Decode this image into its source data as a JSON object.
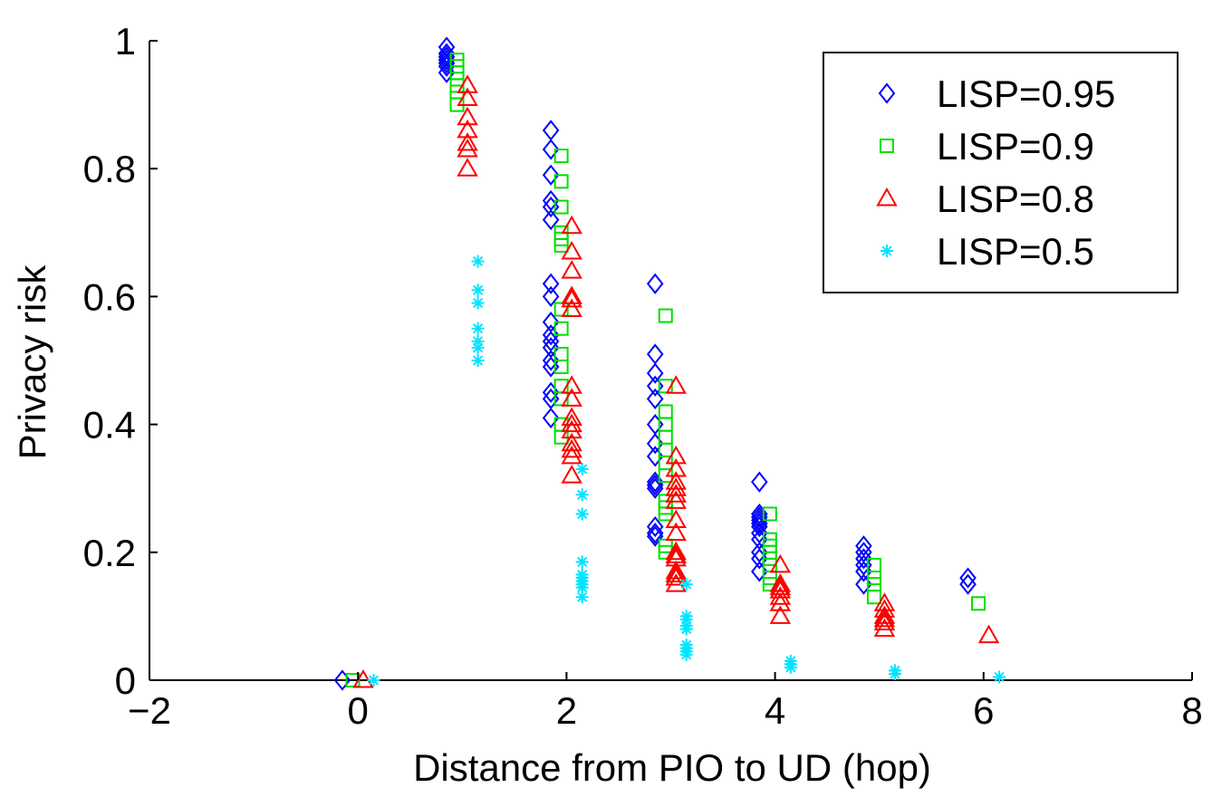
{
  "chart_data": {
    "type": "scatter",
    "title": "",
    "xlabel": "Distance from PIO to UD (hop)",
    "ylabel": "Privacy risk",
    "xlim": [
      -2,
      8
    ],
    "ylim": [
      0,
      1
    ],
    "xticks": [
      -2,
      0,
      2,
      4,
      6,
      8
    ],
    "yticks": [
      0,
      0.2,
      0.4,
      0.6,
      0.8,
      1
    ],
    "xtick_labels": [
      "−2",
      "0",
      "2",
      "4",
      "6",
      "8"
    ],
    "ytick_labels": [
      "0",
      "0.2",
      "0.4",
      "0.6",
      "0.8",
      "1"
    ],
    "grid": false,
    "legend_position": "top-right",
    "series": [
      {
        "name": "LISP=0.95",
        "marker": "diamond",
        "color": "#0000ff",
        "points": [
          [
            -0.15,
            0.0
          ],
          [
            0.85,
            0.99
          ],
          [
            0.85,
            0.98
          ],
          [
            0.85,
            0.975
          ],
          [
            0.85,
            0.97
          ],
          [
            0.85,
            0.965
          ],
          [
            0.85,
            0.96
          ],
          [
            0.85,
            0.95
          ],
          [
            1.85,
            0.86
          ],
          [
            1.85,
            0.83
          ],
          [
            1.85,
            0.79
          ],
          [
            1.85,
            0.75
          ],
          [
            1.85,
            0.74
          ],
          [
            1.85,
            0.72
          ],
          [
            1.85,
            0.62
          ],
          [
            1.85,
            0.6
          ],
          [
            1.85,
            0.56
          ],
          [
            1.85,
            0.54
          ],
          [
            1.85,
            0.53
          ],
          [
            1.85,
            0.52
          ],
          [
            1.85,
            0.5
          ],
          [
            1.85,
            0.49
          ],
          [
            1.85,
            0.45
          ],
          [
            1.85,
            0.44
          ],
          [
            1.85,
            0.41
          ],
          [
            2.85,
            0.62
          ],
          [
            2.85,
            0.51
          ],
          [
            2.85,
            0.48
          ],
          [
            2.85,
            0.46
          ],
          [
            2.85,
            0.44
          ],
          [
            2.85,
            0.4
          ],
          [
            2.85,
            0.37
          ],
          [
            2.85,
            0.35
          ],
          [
            2.85,
            0.31
          ],
          [
            2.85,
            0.305
          ],
          [
            2.85,
            0.3
          ],
          [
            2.85,
            0.24
          ],
          [
            2.85,
            0.23
          ],
          [
            2.85,
            0.225
          ],
          [
            3.85,
            0.31
          ],
          [
            3.85,
            0.26
          ],
          [
            3.85,
            0.255
          ],
          [
            3.85,
            0.25
          ],
          [
            3.85,
            0.245
          ],
          [
            3.85,
            0.24
          ],
          [
            3.85,
            0.23
          ],
          [
            3.85,
            0.22
          ],
          [
            3.85,
            0.2
          ],
          [
            3.85,
            0.19
          ],
          [
            3.85,
            0.17
          ],
          [
            4.85,
            0.21
          ],
          [
            4.85,
            0.2
          ],
          [
            4.85,
            0.19
          ],
          [
            4.85,
            0.18
          ],
          [
            4.85,
            0.17
          ],
          [
            4.85,
            0.15
          ],
          [
            5.85,
            0.16
          ],
          [
            5.85,
            0.15
          ]
        ]
      },
      {
        "name": "LISP=0.9",
        "marker": "square",
        "color": "#00e000",
        "points": [
          [
            -0.05,
            0.0
          ],
          [
            0.95,
            0.97
          ],
          [
            0.95,
            0.96
          ],
          [
            0.95,
            0.95
          ],
          [
            0.95,
            0.93
          ],
          [
            0.95,
            0.92
          ],
          [
            0.95,
            0.9
          ],
          [
            1.95,
            0.82
          ],
          [
            1.95,
            0.78
          ],
          [
            1.95,
            0.74
          ],
          [
            1.95,
            0.7
          ],
          [
            1.95,
            0.69
          ],
          [
            1.95,
            0.68
          ],
          [
            1.95,
            0.58
          ],
          [
            1.95,
            0.55
          ],
          [
            1.95,
            0.51
          ],
          [
            1.95,
            0.49
          ],
          [
            1.95,
            0.46
          ],
          [
            1.95,
            0.44
          ],
          [
            1.95,
            0.4
          ],
          [
            1.95,
            0.38
          ],
          [
            2.95,
            0.57
          ],
          [
            2.95,
            0.46
          ],
          [
            2.95,
            0.42
          ],
          [
            2.95,
            0.4
          ],
          [
            2.95,
            0.38
          ],
          [
            2.95,
            0.36
          ],
          [
            2.95,
            0.34
          ],
          [
            2.95,
            0.32
          ],
          [
            2.95,
            0.28
          ],
          [
            2.95,
            0.27
          ],
          [
            2.95,
            0.26
          ],
          [
            2.95,
            0.21
          ],
          [
            2.95,
            0.2
          ],
          [
            3.95,
            0.26
          ],
          [
            3.95,
            0.22
          ],
          [
            3.95,
            0.21
          ],
          [
            3.95,
            0.2
          ],
          [
            3.95,
            0.19
          ],
          [
            3.95,
            0.18
          ],
          [
            3.95,
            0.16
          ],
          [
            3.95,
            0.15
          ],
          [
            4.95,
            0.18
          ],
          [
            4.95,
            0.16
          ],
          [
            4.95,
            0.15
          ],
          [
            4.95,
            0.13
          ],
          [
            5.95,
            0.12
          ]
        ]
      },
      {
        "name": "LISP=0.8",
        "marker": "triangle",
        "color": "#ff0000",
        "points": [
          [
            0.05,
            0.0
          ],
          [
            1.05,
            0.93
          ],
          [
            1.05,
            0.91
          ],
          [
            1.05,
            0.88
          ],
          [
            1.05,
            0.86
          ],
          [
            1.05,
            0.84
          ],
          [
            1.05,
            0.83
          ],
          [
            1.05,
            0.8
          ],
          [
            2.05,
            0.71
          ],
          [
            2.05,
            0.67
          ],
          [
            2.05,
            0.64
          ],
          [
            2.05,
            0.6
          ],
          [
            2.05,
            0.595
          ],
          [
            2.05,
            0.58
          ],
          [
            2.05,
            0.46
          ],
          [
            2.05,
            0.44
          ],
          [
            2.05,
            0.41
          ],
          [
            2.05,
            0.4
          ],
          [
            2.05,
            0.39
          ],
          [
            2.05,
            0.37
          ],
          [
            2.05,
            0.36
          ],
          [
            2.05,
            0.35
          ],
          [
            2.05,
            0.32
          ],
          [
            3.05,
            0.46
          ],
          [
            3.05,
            0.35
          ],
          [
            3.05,
            0.33
          ],
          [
            3.05,
            0.31
          ],
          [
            3.05,
            0.3
          ],
          [
            3.05,
            0.29
          ],
          [
            3.05,
            0.28
          ],
          [
            3.05,
            0.25
          ],
          [
            3.05,
            0.23
          ],
          [
            3.05,
            0.2
          ],
          [
            3.05,
            0.195
          ],
          [
            3.05,
            0.19
          ],
          [
            3.05,
            0.17
          ],
          [
            3.05,
            0.165
          ],
          [
            3.05,
            0.16
          ],
          [
            3.05,
            0.15
          ],
          [
            4.05,
            0.18
          ],
          [
            4.05,
            0.15
          ],
          [
            4.05,
            0.145
          ],
          [
            4.05,
            0.14
          ],
          [
            4.05,
            0.13
          ],
          [
            4.05,
            0.12
          ],
          [
            4.05,
            0.1
          ],
          [
            5.05,
            0.12
          ],
          [
            5.05,
            0.11
          ],
          [
            5.05,
            0.1
          ],
          [
            5.05,
            0.095
          ],
          [
            5.05,
            0.09
          ],
          [
            5.05,
            0.08
          ],
          [
            6.05,
            0.07
          ]
        ]
      },
      {
        "name": "LISP=0.5",
        "marker": "asterisk",
        "color": "#00e5ff",
        "points": [
          [
            0.15,
            0.0
          ],
          [
            1.15,
            0.655
          ],
          [
            1.15,
            0.61
          ],
          [
            1.15,
            0.59
          ],
          [
            1.15,
            0.55
          ],
          [
            1.15,
            0.53
          ],
          [
            1.15,
            0.52
          ],
          [
            1.15,
            0.5
          ],
          [
            2.15,
            0.33
          ],
          [
            2.15,
            0.29
          ],
          [
            2.15,
            0.26
          ],
          [
            2.15,
            0.185
          ],
          [
            2.15,
            0.165
          ],
          [
            2.15,
            0.16
          ],
          [
            2.15,
            0.155
          ],
          [
            2.15,
            0.15
          ],
          [
            2.15,
            0.145
          ],
          [
            2.15,
            0.13
          ],
          [
            3.15,
            0.15
          ],
          [
            3.15,
            0.1
          ],
          [
            3.15,
            0.095
          ],
          [
            3.15,
            0.085
          ],
          [
            3.15,
            0.08
          ],
          [
            3.15,
            0.055
          ],
          [
            3.15,
            0.05
          ],
          [
            3.15,
            0.045
          ],
          [
            3.15,
            0.04
          ],
          [
            4.15,
            0.03
          ],
          [
            4.15,
            0.025
          ],
          [
            4.15,
            0.02
          ],
          [
            5.15,
            0.015
          ],
          [
            5.15,
            0.01
          ],
          [
            6.15,
            0.005
          ]
        ]
      }
    ]
  }
}
